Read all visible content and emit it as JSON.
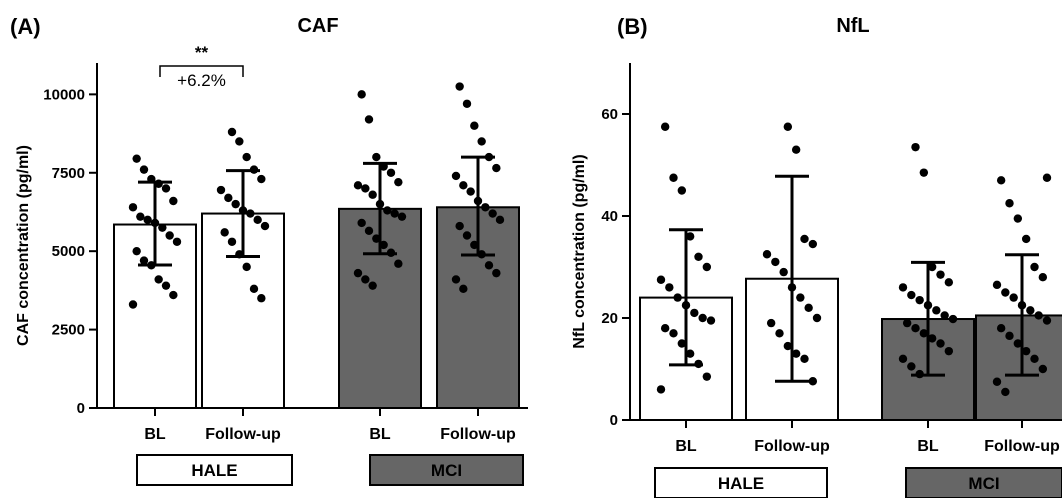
{
  "chart_data": [
    {
      "type": "bar",
      "panel_label": "(A)",
      "title": "CAF",
      "ylabel": "CAF concentration (pg/ml)",
      "ylim": [
        0,
        11000
      ],
      "yticks": [
        0,
        2500,
        5000,
        7500,
        10000
      ],
      "bar_colors": {
        "HALE": "#ffffff",
        "MCI": "#666666"
      },
      "groups": [
        {
          "name": "HALE",
          "bars": [
            {
              "category": "BL",
              "mean": 5850,
              "sd_low": 4560,
              "sd_high": 7200,
              "points": [
                3300,
                3600,
                3900,
                4100,
                4550,
                4700,
                5000,
                5300,
                5500,
                5750,
                5900,
                6000,
                6100,
                6400,
                6600,
                7000,
                7150,
                7300,
                7600,
                7950
              ]
            },
            {
              "category": "Follow-up",
              "mean": 6200,
              "sd_low": 4830,
              "sd_high": 7570,
              "points": [
                3500,
                3800,
                4500,
                4900,
                5300,
                5600,
                5800,
                6000,
                6200,
                6300,
                6500,
                6700,
                6950,
                7300,
                7600,
                8000,
                8500,
                8800
              ]
            }
          ]
        },
        {
          "name": "MCI",
          "bars": [
            {
              "category": "BL",
              "mean": 6350,
              "sd_low": 4920,
              "sd_high": 7800,
              "points": [
                3900,
                4100,
                4300,
                4600,
                4950,
                5200,
                5400,
                5650,
                5900,
                6100,
                6200,
                6300,
                6500,
                6800,
                7000,
                7100,
                7200,
                7500,
                7700,
                8000,
                9200,
                10000
              ]
            },
            {
              "category": "Follow-up",
              "mean": 6400,
              "sd_low": 4880,
              "sd_high": 8000,
              "points": [
                3800,
                4100,
                4300,
                4550,
                4900,
                5200,
                5500,
                5800,
                6000,
                6200,
                6400,
                6600,
                6900,
                7100,
                7400,
                7650,
                8000,
                8500,
                9000,
                9700,
                10250
              ]
            }
          ]
        }
      ],
      "annotations": [
        {
          "text": "**",
          "group": "HALE"
        },
        {
          "text": "+6.2%",
          "group": "HALE"
        }
      ]
    },
    {
      "type": "bar",
      "panel_label": "(B)",
      "title": "NfL",
      "ylabel": "NfL concentration (pg/ml)",
      "ylim": [
        0,
        70
      ],
      "yticks": [
        0,
        20,
        40,
        60
      ],
      "bar_colors": {
        "HALE": "#ffffff",
        "MCI": "#666666"
      },
      "groups": [
        {
          "name": "HALE",
          "bars": [
            {
              "category": "BL",
              "mean": 24,
              "sd_low": 10.8,
              "sd_high": 37.3,
              "points": [
                6,
                8.5,
                11,
                13,
                15,
                17,
                18,
                19.5,
                20,
                21,
                22.5,
                24,
                26,
                27.5,
                30,
                32,
                36,
                45,
                47.5,
                57.5
              ]
            },
            {
              "category": "Follow-up",
              "mean": 27.7,
              "sd_low": 7.6,
              "sd_high": 47.8,
              "points": [
                7.6,
                12,
                13,
                14.5,
                17,
                19,
                20,
                22,
                24,
                26,
                29,
                31,
                32.5,
                34.5,
                35.5,
                53,
                57.5
              ]
            }
          ]
        },
        {
          "name": "MCI",
          "bars": [
            {
              "category": "BL",
              "mean": 19.8,
              "sd_low": 8.8,
              "sd_high": 30.9,
              "points": [
                9,
                10.5,
                12,
                13.5,
                15,
                16,
                17,
                18,
                19,
                19.8,
                20.5,
                21.5,
                22.5,
                23.5,
                24.5,
                26,
                27,
                28.5,
                30,
                48.5,
                53.5
              ]
            },
            {
              "category": "Follow-up",
              "mean": 20.5,
              "sd_low": 8.8,
              "sd_high": 32.4,
              "points": [
                5.5,
                7.5,
                10,
                12,
                13.5,
                15,
                16.5,
                18,
                19.5,
                20.5,
                21.5,
                22.5,
                24,
                25,
                26.5,
                28,
                30,
                35.5,
                39.5,
                42.5,
                47,
                47.5
              ]
            }
          ]
        }
      ],
      "annotations": []
    }
  ]
}
